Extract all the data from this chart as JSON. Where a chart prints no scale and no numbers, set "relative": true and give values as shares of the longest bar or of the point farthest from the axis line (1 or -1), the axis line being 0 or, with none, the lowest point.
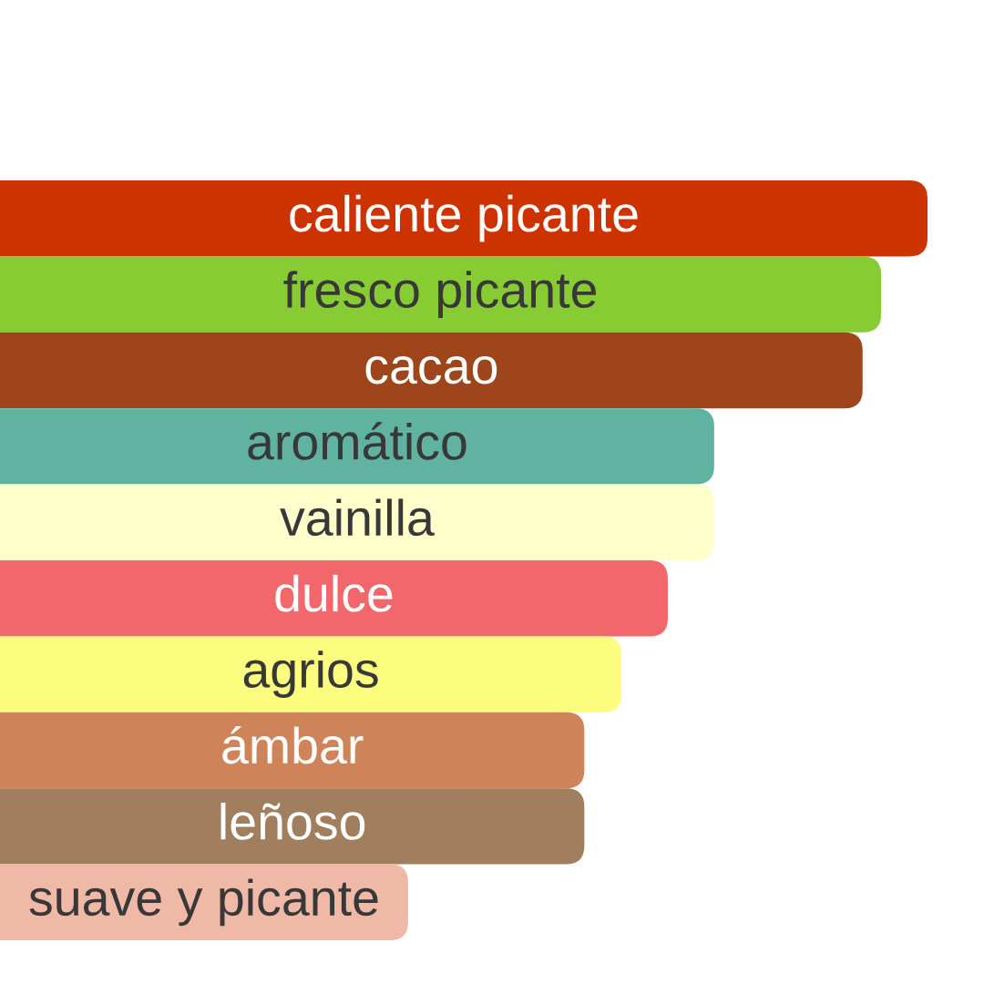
{
  "chart_data": {
    "type": "bar",
    "orientation": "horizontal",
    "relative": true,
    "categories": [
      "caliente picante",
      "fresco picante",
      "cacao",
      "aromático",
      "vainilla",
      "dulce",
      "agrios",
      "ámbar",
      "leñoso",
      "suave y picante"
    ],
    "values": [
      1,
      0.95,
      0.93,
      0.77,
      0.77,
      0.72,
      0.67,
      0.63,
      0.63,
      0.44
    ],
    "colors": [
      "#cc3300",
      "#88cc33",
      "#9e451c",
      "#5fb3a0",
      "#ffffcc",
      "#f2676b",
      "#fcfc7e",
      "#cf8359",
      "#a07e5e",
      "#f0b8a6"
    ]
  }
}
